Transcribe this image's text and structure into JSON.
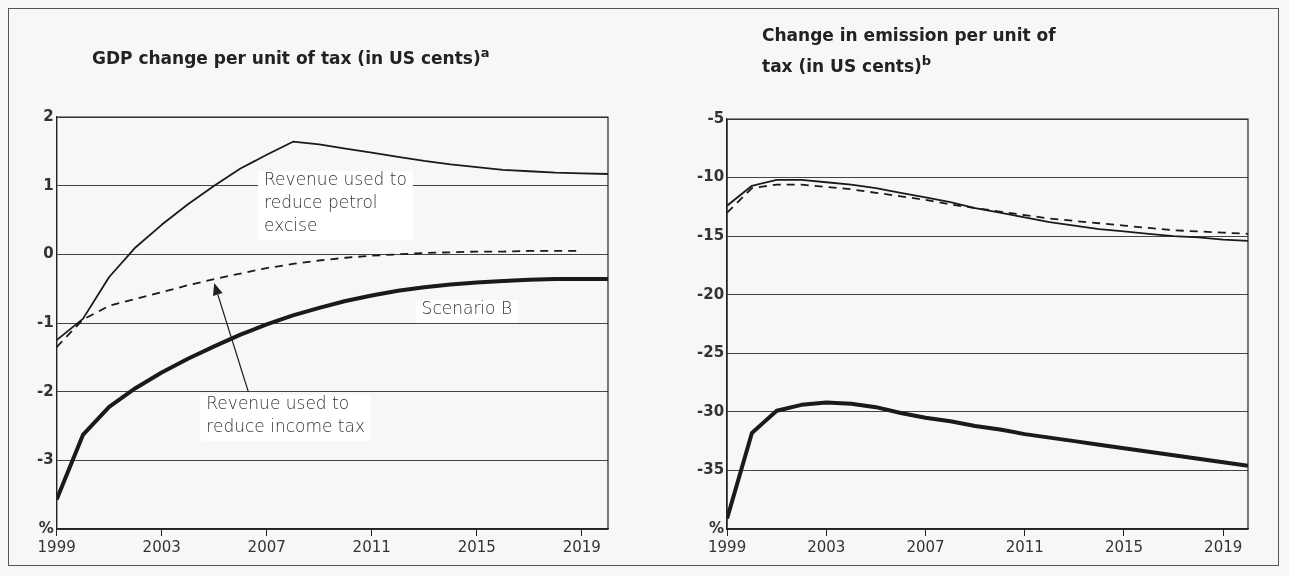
{
  "chart_data": [
    {
      "type": "line",
      "title": "GDP change per unit of tax (in US cents)$^{a}$",
      "x": [
        1999,
        2000,
        2001,
        2002,
        2003,
        2004,
        2005,
        2006,
        2007,
        2008,
        2009,
        2010,
        2011,
        2012,
        2013,
        2014,
        2015,
        2016,
        2017,
        2018,
        2019,
        2020
      ],
      "xlim": [
        1999,
        2020
      ],
      "xticks": [
        1999,
        2003,
        2007,
        2011,
        2015,
        2019
      ],
      "ylim": [
        -4,
        2
      ],
      "yticks": [
        2,
        1,
        0,
        -1,
        -2,
        -3,
        {
          "value": -4,
          "label": "%"
        }
      ],
      "grid": "y",
      "legend": false,
      "marker": "none",
      "series": [
        {
          "name": "Revenue used to reduce petrol excise",
          "color": "#1a1a1a",
          "line_style": "solid",
          "values": [
            -1.25,
            -0.94,
            -0.33,
            0.1,
            0.43,
            0.73,
            1.0,
            1.25,
            1.45,
            1.64,
            1.6,
            1.54,
            1.48,
            1.42,
            1.36,
            1.31,
            1.27,
            1.23,
            1.21,
            1.19,
            1.18,
            1.17
          ]
        },
        {
          "name": "Revenue used to reduce income tax",
          "color": "#1a1a1a",
          "line_style": "dashed",
          "values": [
            -1.35,
            -0.95,
            -0.75,
            -0.65,
            -0.55,
            -0.45,
            -0.36,
            -0.28,
            -0.2,
            -0.14,
            -0.09,
            -0.05,
            -0.02,
            0.0,
            0.02,
            0.03,
            0.04,
            0.04,
            0.05,
            0.05,
            0.05,
            null
          ]
        },
        {
          "name": "Scenario B",
          "color": "#1a1a1a",
          "line_style": "solid",
          "values": [
            -3.57,
            -2.63,
            -2.22,
            -1.95,
            -1.72,
            -1.52,
            -1.34,
            -1.17,
            -1.02,
            -0.89,
            -0.78,
            -0.68,
            -0.6,
            -0.53,
            -0.48,
            -0.44,
            -0.41,
            -0.39,
            -0.37,
            -0.36,
            -0.36,
            -0.36
          ]
        }
      ]
    },
    {
      "type": "line",
      "title": "Change in emission per unit of tax (in US cents)$^{b}$",
      "x": [
        1999,
        2000,
        2001,
        2002,
        2003,
        2004,
        2005,
        2006,
        2007,
        2008,
        2009,
        2010,
        2011,
        2012,
        2013,
        2014,
        2015,
        2016,
        2017,
        2018,
        2019,
        2020
      ],
      "xlim": [
        1999,
        2020
      ],
      "xticks": [
        1999,
        2003,
        2007,
        2011,
        2015,
        2019
      ],
      "ylim": [
        -40,
        -5
      ],
      "yticks": [
        -5,
        -10,
        -15,
        -20,
        -25,
        -30,
        -35,
        {
          "value": -40,
          "label": "%"
        }
      ],
      "grid": "y",
      "legend": false,
      "marker": "none",
      "series": [
        {
          "color": "#1a1a1a",
          "line_style": "solid",
          "values": [
            -12.4,
            -10.7,
            -10.2,
            -10.2,
            -10.4,
            -10.6,
            -10.9,
            -11.3,
            -11.7,
            -12.1,
            -12.6,
            -13.0,
            -13.4,
            -13.8,
            -14.1,
            -14.4,
            -14.6,
            -14.8,
            -15.0,
            -15.1,
            -15.3,
            -15.4
          ]
        },
        {
          "color": "#1a1a1a",
          "line_style": "dashed",
          "values": [
            -13.0,
            -10.9,
            -10.6,
            -10.6,
            -10.8,
            -11.0,
            -11.3,
            -11.6,
            -11.9,
            -12.3,
            -12.6,
            -12.9,
            -13.2,
            -13.5,
            -13.7,
            -13.9,
            -14.1,
            -14.3,
            -14.5,
            -14.6,
            -14.7,
            -14.8
          ]
        },
        {
          "color": "#1a1a1a",
          "line_style": "solid",
          "values": [
            -39.1,
            -31.8,
            -29.9,
            -29.4,
            -29.2,
            -29.3,
            -29.6,
            -30.1,
            -30.5,
            -30.8,
            -31.2,
            -31.5,
            -31.9,
            -32.2,
            -32.5,
            -32.8,
            -33.1,
            -33.4,
            -33.7,
            -34.0,
            -34.3,
            -34.6
          ]
        }
      ]
    }
  ]
}
